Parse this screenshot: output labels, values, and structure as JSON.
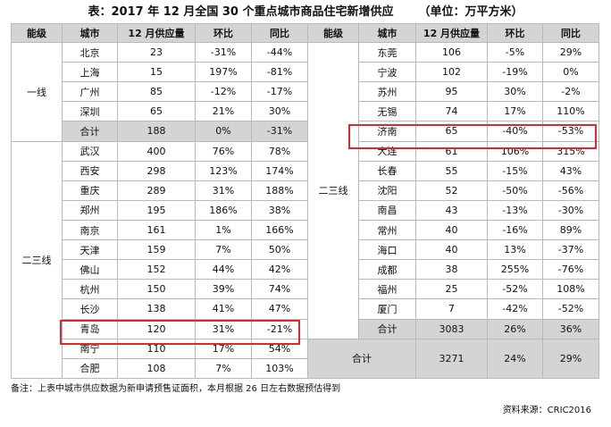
{
  "title": "表：2017 年 12 月全国 30 个重点城市商品住宅新增供应",
  "unit": "（单位：万平方米）",
  "headers": [
    "能级",
    "城市",
    "12 月供应量",
    "环比",
    "同比",
    "能级",
    "城市",
    "12 月供应量",
    "环比",
    "同比"
  ],
  "left": {
    "tier1_label": "一线",
    "tier23_label": "二三线",
    "tier1_rows": [
      [
        "北京",
        "23",
        "-31%",
        "-44%"
      ],
      [
        "上海",
        "15",
        "197%",
        "-81%"
      ],
      [
        "广州",
        "85",
        "-12%",
        "-17%"
      ],
      [
        "深圳",
        "65",
        "21%",
        "30%"
      ]
    ],
    "tier1_total": [
      "合计",
      "188",
      "0%",
      "-31%"
    ],
    "tier23_rows": [
      [
        "武汉",
        "400",
        "76%",
        "78%"
      ],
      [
        "西安",
        "298",
        "123%",
        "174%"
      ],
      [
        "重庆",
        "289",
        "31%",
        "188%"
      ],
      [
        "郑州",
        "195",
        "186%",
        "38%"
      ],
      [
        "南京",
        "161",
        "1%",
        "166%"
      ],
      [
        "天津",
        "159",
        "7%",
        "50%"
      ],
      [
        "佛山",
        "152",
        "44%",
        "42%"
      ],
      [
        "杭州",
        "150",
        "39%",
        "74%"
      ],
      [
        "长沙",
        "138",
        "41%",
        "47%"
      ],
      [
        "青岛",
        "120",
        "31%",
        "-21%"
      ],
      [
        "南宁",
        "110",
        "17%",
        "54%"
      ],
      [
        "合肥",
        "108",
        "7%",
        "103%"
      ]
    ]
  },
  "right": {
    "tier23_label": "二三线",
    "rows": [
      [
        "东莞",
        "106",
        "-5%",
        "29%"
      ],
      [
        "宁波",
        "102",
        "-19%",
        "0%"
      ],
      [
        "苏州",
        "95",
        "30%",
        "-2%"
      ],
      [
        "无锡",
        "74",
        "17%",
        "110%"
      ],
      [
        "济南",
        "65",
        "-40%",
        "-53%"
      ],
      [
        "大连",
        "61",
        "106%",
        "315%"
      ],
      [
        "长春",
        "55",
        "-15%",
        "43%"
      ],
      [
        "沈阳",
        "52",
        "-50%",
        "-56%"
      ],
      [
        "南昌",
        "43",
        "-13%",
        "-30%"
      ],
      [
        "常州",
        "40",
        "-16%",
        "89%"
      ],
      [
        "海口",
        "40",
        "13%",
        "-37%"
      ],
      [
        "成都",
        "38",
        "255%",
        "-76%"
      ],
      [
        "福州",
        "25",
        "-52%",
        "108%"
      ],
      [
        "厦门",
        "7",
        "-42%",
        "-52%"
      ]
    ],
    "tier23_total": [
      "合计",
      "3083",
      "26%",
      "36%"
    ],
    "grand_total": [
      "合计",
      "3271",
      "24%",
      "29%"
    ]
  },
  "footer_note": "备注：上表中城市供应数据为新申请预售证面积，本月根据 26 日左右数据预估得到",
  "source": "资料来源：CRIC2016",
  "highlight_color": "#e0282a"
}
